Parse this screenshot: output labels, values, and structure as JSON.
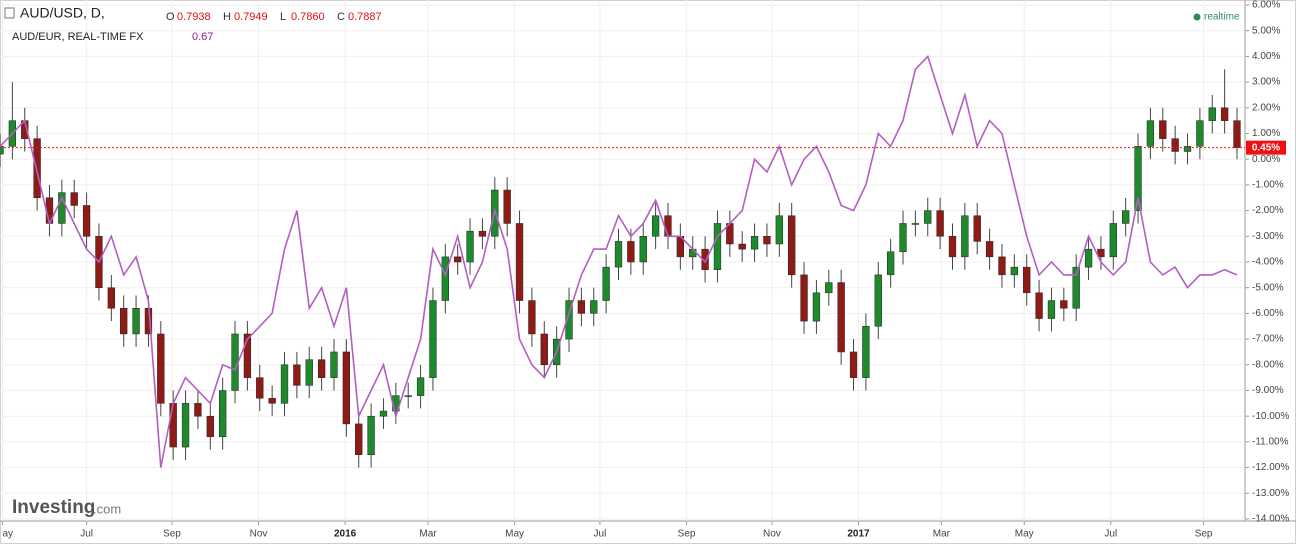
{
  "header": {
    "symbol": "AUD/USD, D,",
    "ohlc": [
      {
        "key": "O",
        "value": "0.7938"
      },
      {
        "key": "H",
        "value": "0.7949"
      },
      {
        "key": "L",
        "value": "0.7860"
      },
      {
        "key": "C",
        "value": "0.7887"
      }
    ],
    "compare": {
      "name": "AUD/EUR, REAL-TIME FX",
      "value": "0.67"
    },
    "status": "realtime"
  },
  "logo": {
    "brand": "Investing",
    "suffix": ".com"
  },
  "chart_data": {
    "type": "candlestick",
    "xlim": [
      0,
      100
    ],
    "xticks": [
      {
        "value": 0.2,
        "label": "ay"
      },
      {
        "value": 7.0,
        "label": "Jul"
      },
      {
        "value": 13.9,
        "label": "Sep"
      },
      {
        "value": 20.9,
        "label": "Nov"
      },
      {
        "value": 27.9,
        "label": "2016"
      },
      {
        "value": 34.6,
        "label": "Mar"
      },
      {
        "value": 41.6,
        "label": "May"
      },
      {
        "value": 48.5,
        "label": "Jul"
      },
      {
        "value": 55.5,
        "label": "Sep"
      },
      {
        "value": 62.4,
        "label": "Nov"
      },
      {
        "value": 69.4,
        "label": "2017"
      },
      {
        "value": 76.1,
        "label": "Mar"
      },
      {
        "value": 82.8,
        "label": "May"
      },
      {
        "value": 89.8,
        "label": "Jul"
      },
      {
        "value": 97.3,
        "label": "Sep"
      }
    ],
    "ylim": [
      -14,
      6
    ],
    "yticks": [
      {
        "value": 6,
        "label": "6.00%"
      },
      {
        "value": 5,
        "label": "5.00%"
      },
      {
        "value": 4,
        "label": "4.00%"
      },
      {
        "value": 3,
        "label": "3.00%"
      },
      {
        "value": 2,
        "label": "2.00%"
      },
      {
        "value": 1,
        "label": "1.00%"
      },
      {
        "value": 0,
        "label": "0.00%"
      },
      {
        "value": -1,
        "label": "-1.00%"
      },
      {
        "value": -2,
        "label": "-2.00%"
      },
      {
        "value": -3,
        "label": "-3.00%"
      },
      {
        "value": -4,
        "label": "-4.00%"
      },
      {
        "value": -5,
        "label": "-5.00%"
      },
      {
        "value": -6,
        "label": "-6.00%"
      },
      {
        "value": -7,
        "label": "-7.00%"
      },
      {
        "value": -8,
        "label": "-8.00%"
      },
      {
        "value": -9,
        "label": "-9.00%"
      },
      {
        "value": -10,
        "label": "-10.00%"
      },
      {
        "value": -11,
        "label": "-11.00%"
      },
      {
        "value": -12,
        "label": "-12.00%"
      },
      {
        "value": -13,
        "label": "-13.00%"
      },
      {
        "value": -14,
        "label": "-14.00%"
      }
    ],
    "grid": true,
    "series": [
      {
        "type": "candlestick",
        "up_color": "#1e8a2c",
        "down_color": "#8e1b16",
        "open": [
          0.2,
          0.5,
          1.5,
          0.8,
          -1.5,
          -2.5,
          -1.3,
          -1.8,
          -3,
          -5,
          -5.8,
          -6.8,
          -5.8,
          -6.8,
          -9.5,
          -11.2,
          -9.5,
          -10,
          -10.8,
          -9,
          -6.8,
          -8.5,
          -9.3,
          -9.5,
          -8,
          -8.8,
          -7.8,
          -8.5,
          -7.5,
          -10.3,
          -11.5,
          -10,
          -9.8,
          -9.2,
          -9.2,
          -8.5,
          -5.5,
          -3.8,
          -4,
          -2.8,
          -3,
          -1.2,
          -2.5,
          -5.5,
          -6.8,
          -8,
          -7,
          -5.5,
          -6,
          -5.5,
          -4.2,
          -3.2,
          -4,
          -3,
          -2.2,
          -3,
          -3.8,
          -3.5,
          -4.3,
          -2.5,
          -3.3,
          -3.5,
          -3,
          -3.3,
          -2.2,
          -4.5,
          -6.3,
          -5.2,
          -4.8,
          -7.5,
          -8.5,
          -6.5,
          -4.5,
          -3.6,
          -2.5,
          -2.5,
          -2,
          -3,
          -3.8,
          -2.2,
          -3.2,
          -3.8,
          -4.5,
          -4.2,
          -5.2,
          -6.2,
          -5.5,
          -5.8,
          -4.2,
          -3.5,
          -3.8,
          -2.5,
          -2,
          0.5,
          1.5,
          0.8,
          0.3,
          0.5,
          1.5,
          2,
          1.5
        ],
        "high": [
          1.0,
          3.0,
          2.0,
          1.3,
          -1.0,
          -0.8,
          -0.8,
          -1.3,
          -2.5,
          -4.5,
          -5.3,
          -5.3,
          -5.3,
          -6.3,
          -9.0,
          -9.0,
          -9.0,
          -9.5,
          -8.5,
          -6.3,
          -6.3,
          -8.0,
          -8.8,
          -7.5,
          -7.5,
          -7.3,
          -7.3,
          -7.0,
          -7.0,
          -9.8,
          -9.5,
          -9.3,
          -8.7,
          -8.7,
          -8.0,
          -5.0,
          -3.3,
          -3.3,
          -2.3,
          -2.3,
          -0.7,
          -0.7,
          -2.0,
          -5.0,
          -6.3,
          -6.5,
          -5.0,
          -5.0,
          -5.0,
          -3.7,
          -2.7,
          -2.7,
          -2.5,
          -1.7,
          -1.7,
          -2.5,
          -3.0,
          -3.0,
          -2.0,
          -2.0,
          -2.8,
          -2.5,
          -2.5,
          -1.7,
          -1.7,
          -4.0,
          -4.7,
          -4.3,
          -4.3,
          -7.0,
          -6.0,
          -4.0,
          -3.1,
          -2.0,
          -2.0,
          -1.5,
          -1.5,
          -2.5,
          -1.7,
          -1.7,
          -2.7,
          -3.3,
          -3.7,
          -3.7,
          -4.7,
          -5.0,
          -5.0,
          -3.7,
          -3.0,
          -3.0,
          -2.0,
          -1.5,
          1.0,
          2.0,
          2.0,
          1.3,
          1.0,
          2.0,
          2.5,
          3.5,
          2.0
        ],
        "low": [
          -0.3,
          0.0,
          0.3,
          -2.0,
          -3.0,
          -3.0,
          -2.3,
          -3.5,
          -5.5,
          -6.3,
          -7.3,
          -7.3,
          -7.3,
          -10.0,
          -11.7,
          -11.7,
          -10.5,
          -11.3,
          -11.3,
          -9.5,
          -9.0,
          -9.8,
          -10.0,
          -10.0,
          -9.3,
          -9.3,
          -9.0,
          -9.0,
          -10.8,
          -12.0,
          -12.0,
          -10.5,
          -10.3,
          -9.7,
          -9.7,
          -9.0,
          -6.0,
          -4.5,
          -4.5,
          -3.5,
          -3.5,
          -3.0,
          -6.0,
          -7.3,
          -8.5,
          -8.5,
          -7.5,
          -6.5,
          -6.5,
          -6.0,
          -4.7,
          -4.5,
          -4.5,
          -3.5,
          -3.5,
          -4.3,
          -4.3,
          -4.8,
          -4.8,
          -3.8,
          -4.0,
          -4.0,
          -3.8,
          -3.8,
          -5.0,
          -6.8,
          -6.8,
          -5.7,
          -8.0,
          -9.0,
          -9.0,
          -7.0,
          -5.0,
          -4.1,
          -3.0,
          -3.0,
          -3.5,
          -4.3,
          -4.3,
          -3.7,
          -4.3,
          -5.0,
          -5.0,
          -5.7,
          -6.7,
          -6.7,
          -6.3,
          -6.3,
          -4.7,
          -4.3,
          -4.3,
          -3.0,
          -2.5,
          0.0,
          0.3,
          -0.2,
          -0.2,
          0.0,
          1.0,
          1.0,
          0.0
        ],
        "close": [
          0.5,
          1.5,
          0.8,
          -1.5,
          -2.5,
          -1.3,
          -1.8,
          -3,
          -5,
          -5.8,
          -6.8,
          -5.8,
          -6.8,
          -9.5,
          -11.2,
          -9.5,
          -10,
          -10.8,
          -9,
          -6.8,
          -8.5,
          -9.3,
          -9.5,
          -8,
          -8.8,
          -7.8,
          -8.5,
          -7.5,
          -10.3,
          -11.5,
          -10,
          -9.8,
          -9.2,
          -9.2,
          -8.5,
          -5.5,
          -3.8,
          -4,
          -2.8,
          -3,
          -1.2,
          -2.5,
          -5.5,
          -6.8,
          -8,
          -7,
          -5.5,
          -6,
          -5.5,
          -4.2,
          -3.2,
          -4,
          -3,
          -2.2,
          -3,
          -3.8,
          -3.5,
          -4.3,
          -2.5,
          -3.3,
          -3.5,
          -3,
          -3.3,
          -2.2,
          -4.5,
          -6.3,
          -5.2,
          -4.8,
          -7.5,
          -8.5,
          -6.5,
          -4.5,
          -3.6,
          -2.5,
          -2.5,
          -2,
          -3,
          -3.8,
          -2.2,
          -3.2,
          -3.8,
          -4.5,
          -4.2,
          -5.2,
          -6.2,
          -5.5,
          -5.8,
          -4.2,
          -3.5,
          -3.8,
          -2.5,
          -2,
          0.5,
          1.5,
          0.8,
          0.3,
          0.5,
          1.5,
          2,
          1.5,
          0.45
        ]
      },
      {
        "type": "line",
        "color": "#b35fc2",
        "values": [
          0.5,
          1,
          1.5,
          -0.5,
          -2.5,
          -1.5,
          -2.5,
          -3.5,
          -4,
          -3,
          -4.5,
          -3.8,
          -5.5,
          -12,
          -9.5,
          -8.5,
          -9,
          -9.5,
          -8,
          -8.2,
          -7,
          -6.5,
          -6,
          -3.5,
          -2,
          -5.8,
          -5,
          -6.5,
          -5,
          -10,
          -9,
          -8,
          -10,
          -8.5,
          -7,
          -3.5,
          -4.5,
          -3,
          -5,
          -4,
          -2,
          -3.5,
          -7,
          -8,
          -8.5,
          -7.5,
          -6,
          -4.5,
          -3.5,
          -3.5,
          -2.2,
          -3,
          -2.5,
          -1.6,
          -3,
          -3,
          -3.5,
          -4,
          -3,
          -2.5,
          -2,
          0,
          -0.5,
          0.5,
          -1,
          0,
          0.5,
          -0.5,
          -1.8,
          -2,
          -1,
          1,
          0.5,
          1.5,
          3.5,
          4,
          2.5,
          1,
          2.5,
          0.5,
          1.5,
          1,
          -1,
          -3,
          -4.5,
          -4,
          -4.5,
          -4.5,
          -3,
          -4,
          -4.5,
          -4,
          -1.5,
          -4,
          -4.5,
          -4.2,
          -5,
          -4.5,
          -4.5,
          -4.3,
          -4.5
        ]
      }
    ],
    "last": {
      "value": 0.45,
      "label": "0.45%",
      "color": "#ee1111"
    }
  }
}
